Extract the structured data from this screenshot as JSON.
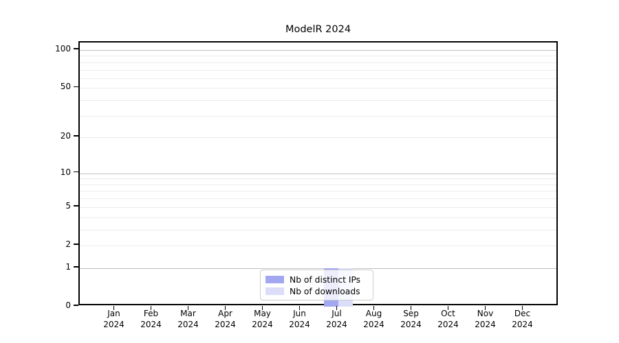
{
  "chart_data": {
    "type": "bar",
    "title": "ModelR 2024",
    "categories": [
      "Jan",
      "Feb",
      "Mar",
      "Apr",
      "May",
      "Jun",
      "Jul",
      "Aug",
      "Sep",
      "Oct",
      "Nov",
      "Dec"
    ],
    "x_tick_year": "2024",
    "series": [
      {
        "name": "Nb of distinct IPs",
        "color": "#a3a7f0",
        "values": [
          0,
          0,
          0,
          0,
          0,
          0,
          1,
          0,
          0,
          0,
          0,
          0
        ]
      },
      {
        "name": "Nb of downloads",
        "color": "#dcdef9",
        "values": [
          0,
          0,
          0,
          0,
          0,
          0,
          1,
          0,
          0,
          0,
          0,
          0
        ]
      }
    ],
    "y_ticks": [
      0,
      1,
      2,
      5,
      10,
      20,
      50,
      100
    ],
    "y_scale": "log10(value+1)",
    "ylim": [
      0,
      114.6
    ],
    "grid": "both",
    "major_grid_values": [
      1,
      10,
      100
    ],
    "legend_position": "lower center"
  }
}
